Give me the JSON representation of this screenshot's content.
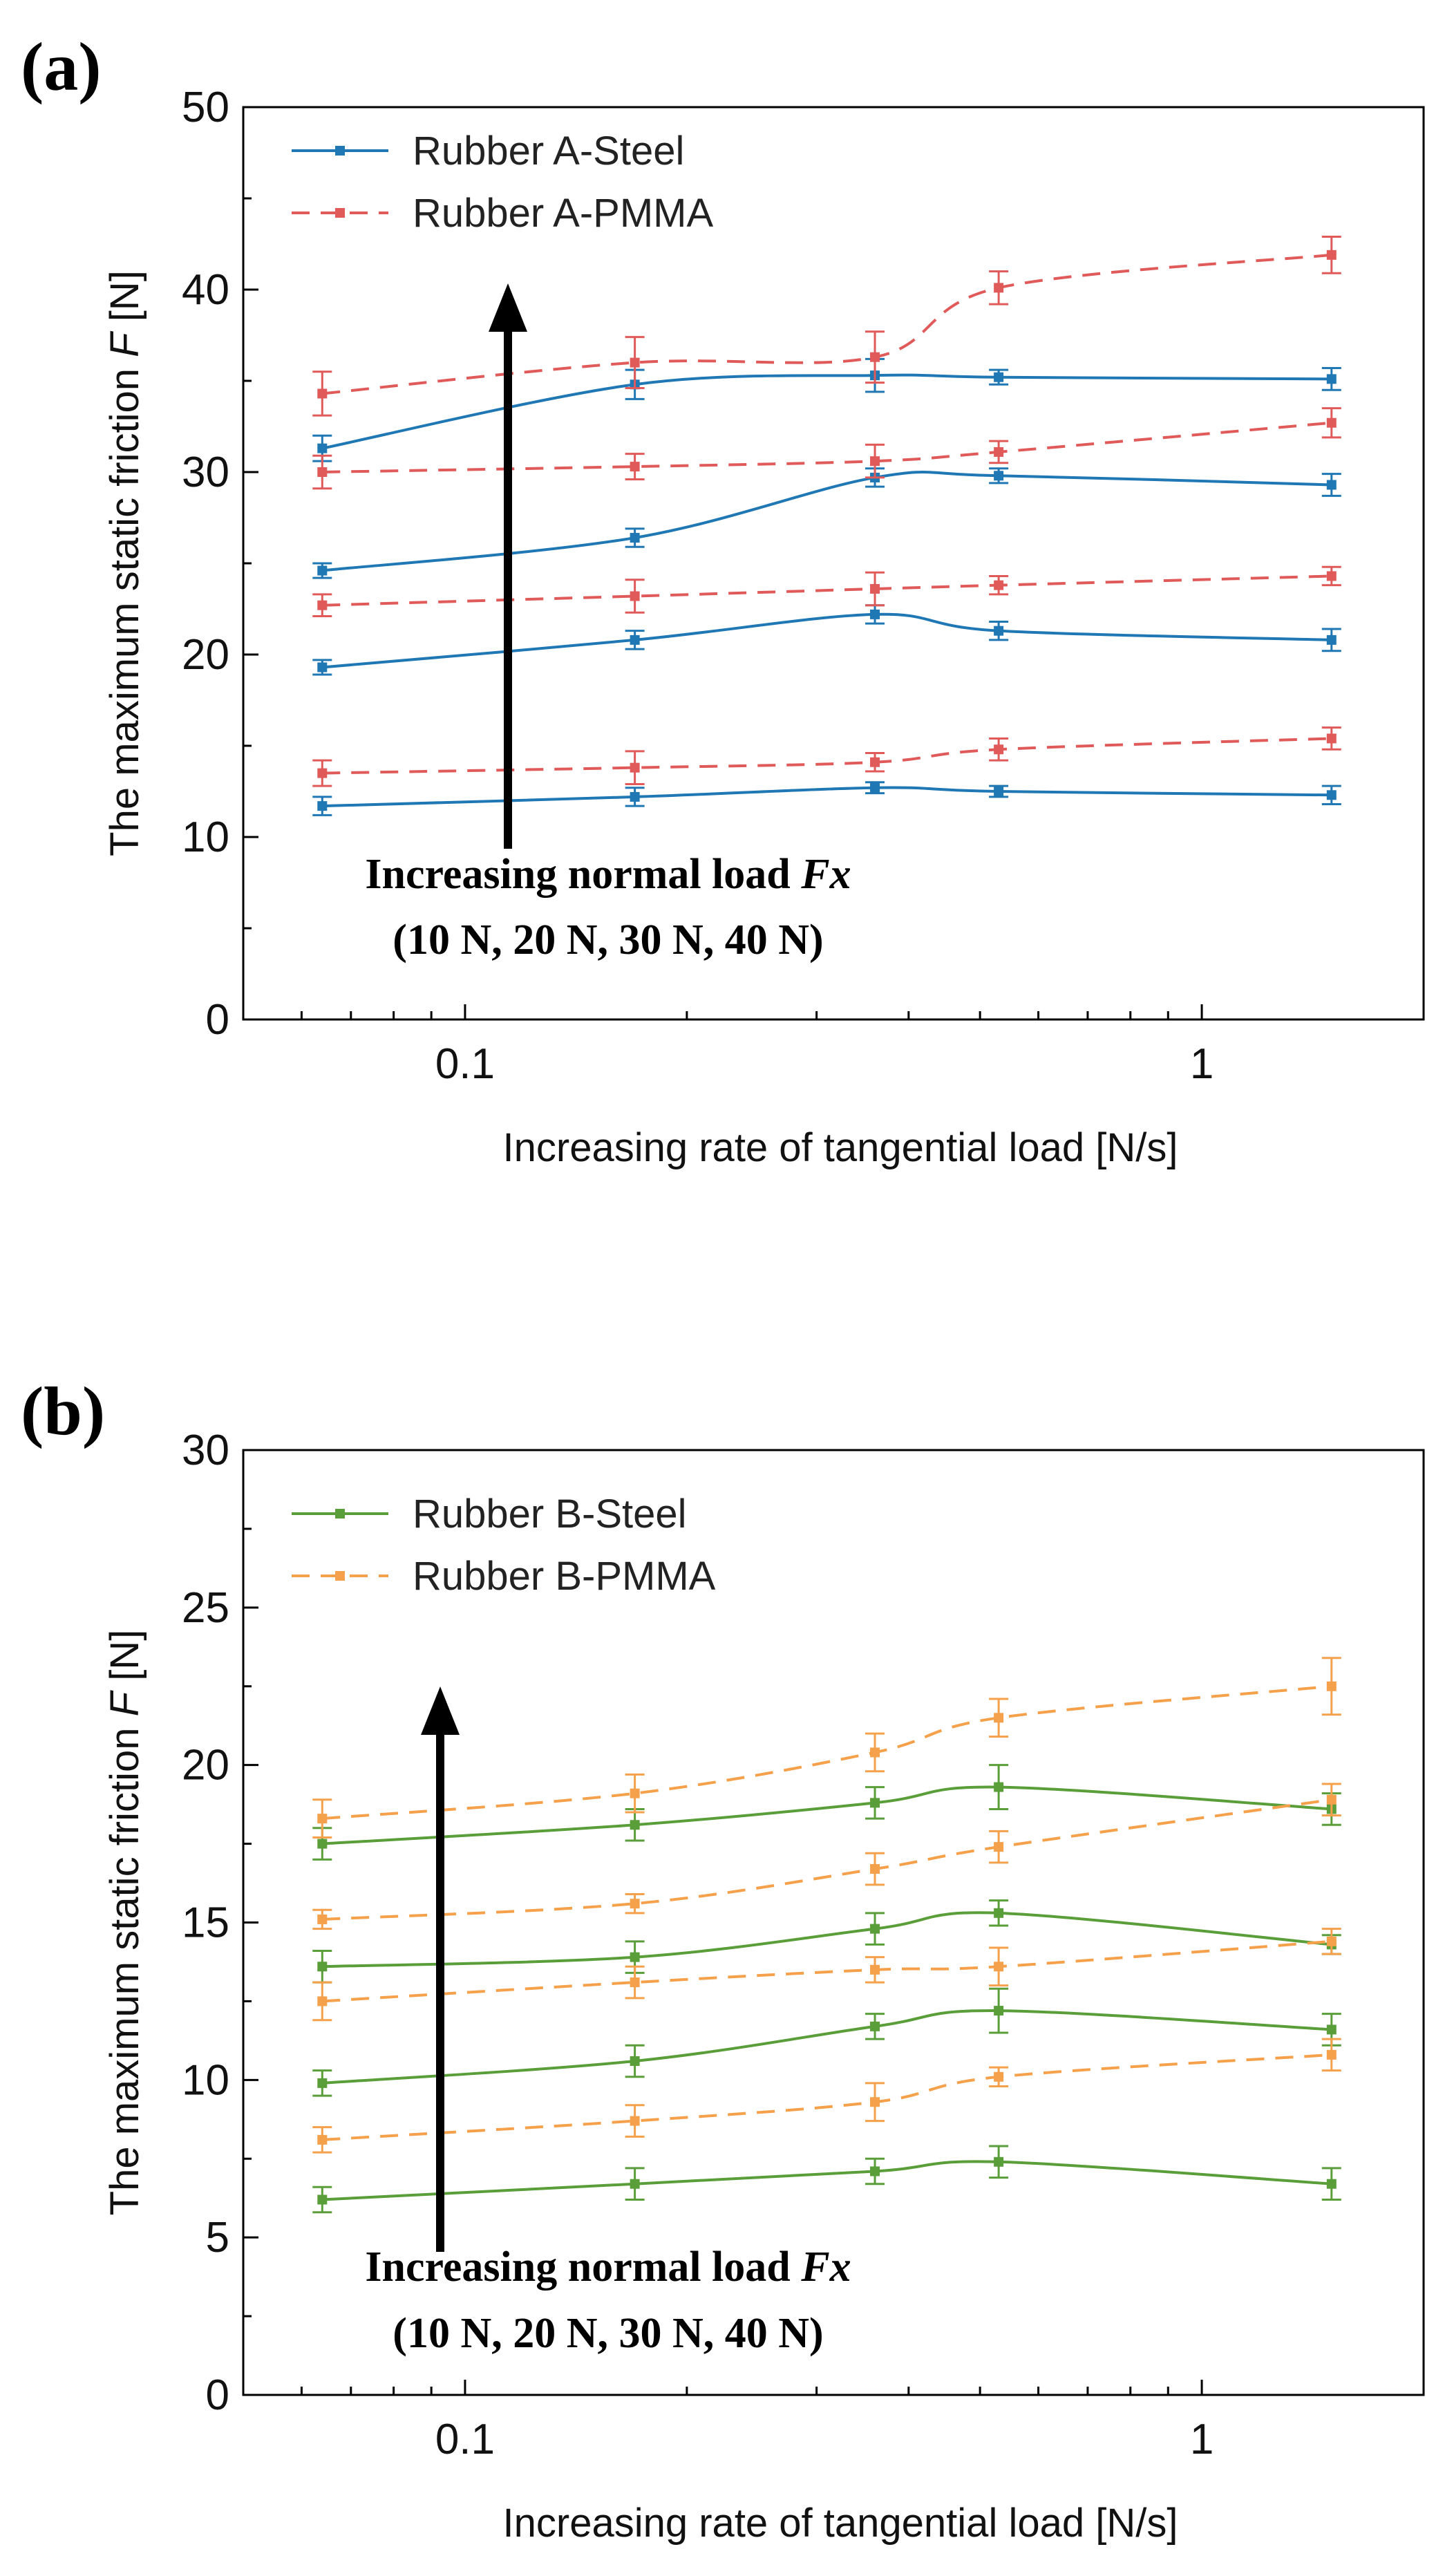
{
  "chart_data": [
    {
      "type": "line",
      "panel_label": "(a)",
      "xscale": "log",
      "xlim": [
        0.05,
        2
      ],
      "ylim": [
        0,
        50
      ],
      "xticks": [
        0.1,
        1
      ],
      "xtick_labels": [
        "0.1",
        "1"
      ],
      "yticks": [
        0,
        10,
        20,
        30,
        40,
        50
      ],
      "ytick_labels": [
        "0",
        "10",
        "20",
        "30",
        "40",
        "50"
      ],
      "xlabel": "Increasing rate of tangential load [N/s]",
      "ylabel_main": "The maximum static friction ",
      "ylabel_var": "F",
      "ylabel_unit": " [N]",
      "x": [
        0.064,
        0.17,
        0.36,
        0.53,
        1.5
      ],
      "annotation_line1": "Increasing normal load ",
      "annotation_var": "Fx",
      "annotation_line2": "(10 N, 20 N, 30 N, 40 N)",
      "legend": [
        {
          "name": "Rubber A-Steel",
          "color": "#1f77b4",
          "dashed": false
        },
        {
          "name": "Rubber A-PMMA",
          "color": "#e05a5a",
          "dashed": true
        }
      ],
      "series": [
        {
          "group": "Rubber A-Steel",
          "load": "10 N",
          "values": [
            11.7,
            12.2,
            12.7,
            12.5,
            12.3
          ],
          "errors": [
            0.5,
            0.5,
            0.3,
            0.3,
            0.5
          ]
        },
        {
          "group": "Rubber A-Steel",
          "load": "20 N",
          "values": [
            19.3,
            20.8,
            22.2,
            21.3,
            20.8
          ],
          "errors": [
            0.4,
            0.5,
            0.5,
            0.5,
            0.6
          ]
        },
        {
          "group": "Rubber A-Steel",
          "load": "30 N",
          "values": [
            24.6,
            26.4,
            29.7,
            29.8,
            29.3
          ],
          "errors": [
            0.4,
            0.5,
            0.5,
            0.4,
            0.6
          ]
        },
        {
          "group": "Rubber A-Steel",
          "load": "40 N",
          "values": [
            31.3,
            34.8,
            35.3,
            35.2,
            35.1
          ],
          "errors": [
            0.7,
            0.8,
            0.9,
            0.4,
            0.6
          ]
        },
        {
          "group": "Rubber A-PMMA",
          "load": "10 N",
          "values": [
            13.5,
            13.8,
            14.1,
            14.8,
            15.4
          ],
          "errors": [
            0.7,
            0.9,
            0.5,
            0.6,
            0.6
          ]
        },
        {
          "group": "Rubber A-PMMA",
          "load": "20 N",
          "values": [
            22.7,
            23.2,
            23.6,
            23.8,
            24.3
          ],
          "errors": [
            0.6,
            0.9,
            0.9,
            0.5,
            0.5
          ]
        },
        {
          "group": "Rubber A-PMMA",
          "load": "30 N",
          "values": [
            30.0,
            30.3,
            30.6,
            31.1,
            32.7
          ],
          "errors": [
            0.9,
            0.7,
            0.9,
            0.6,
            0.8
          ]
        },
        {
          "group": "Rubber A-PMMA",
          "load": "40 N",
          "values": [
            34.3,
            36.0,
            36.3,
            40.1,
            41.9
          ],
          "errors": [
            1.2,
            1.4,
            1.4,
            0.9,
            1.0
          ]
        }
      ]
    },
    {
      "type": "line",
      "panel_label": "(b)",
      "xscale": "log",
      "xlim": [
        0.05,
        2
      ],
      "ylim": [
        0,
        30
      ],
      "xticks": [
        0.1,
        1
      ],
      "xtick_labels": [
        "0.1",
        "1"
      ],
      "yticks": [
        0,
        5,
        10,
        15,
        20,
        25,
        30
      ],
      "ytick_labels": [
        "0",
        "5",
        "10",
        "15",
        "20",
        "25",
        "30"
      ],
      "xlabel": "Increasing rate of tangential load [N/s]",
      "ylabel_main": "The maximum static friction ",
      "ylabel_var": "F",
      "ylabel_unit": " [N]",
      "x": [
        0.064,
        0.17,
        0.36,
        0.53,
        1.5
      ],
      "annotation_line1": "Increasing normal load ",
      "annotation_var": "Fx",
      "annotation_line2": "(10 N, 20 N, 30 N, 40 N)",
      "legend": [
        {
          "name": "Rubber B-Steel",
          "color": "#5a9e3a",
          "dashed": false
        },
        {
          "name": "Rubber B-PMMA",
          "color": "#f5a04a",
          "dashed": true
        }
      ],
      "series": [
        {
          "group": "Rubber B-Steel",
          "load": "10 N",
          "values": [
            6.2,
            6.7,
            7.1,
            7.4,
            6.7
          ],
          "errors": [
            0.4,
            0.5,
            0.4,
            0.5,
            0.5
          ]
        },
        {
          "group": "Rubber B-Steel",
          "load": "20 N",
          "values": [
            9.9,
            10.6,
            11.7,
            12.2,
            11.6
          ],
          "errors": [
            0.4,
            0.5,
            0.4,
            0.7,
            0.5
          ]
        },
        {
          "group": "Rubber B-Steel",
          "load": "30 N",
          "values": [
            13.6,
            13.9,
            14.8,
            15.3,
            14.3
          ],
          "errors": [
            0.5,
            0.5,
            0.5,
            0.4,
            0.3
          ]
        },
        {
          "group": "Rubber B-Steel",
          "load": "40 N",
          "values": [
            17.5,
            18.1,
            18.8,
            19.3,
            18.6
          ],
          "errors": [
            0.5,
            0.5,
            0.5,
            0.7,
            0.5
          ]
        },
        {
          "group": "Rubber B-PMMA",
          "load": "10 N",
          "values": [
            8.1,
            8.7,
            9.3,
            10.1,
            10.8
          ],
          "errors": [
            0.4,
            0.5,
            0.6,
            0.3,
            0.5
          ]
        },
        {
          "group": "Rubber B-PMMA",
          "load": "20 N",
          "values": [
            12.5,
            13.1,
            13.5,
            13.6,
            14.4
          ],
          "errors": [
            0.6,
            0.5,
            0.4,
            0.6,
            0.4
          ]
        },
        {
          "group": "Rubber B-PMMA",
          "load": "30 N",
          "values": [
            15.1,
            15.6,
            16.7,
            17.4,
            18.9
          ],
          "errors": [
            0.3,
            0.3,
            0.5,
            0.5,
            0.5
          ]
        },
        {
          "group": "Rubber B-PMMA",
          "load": "40 N",
          "values": [
            18.3,
            19.1,
            20.4,
            21.5,
            22.5
          ],
          "errors": [
            0.6,
            0.6,
            0.6,
            0.6,
            0.9
          ]
        }
      ]
    }
  ]
}
